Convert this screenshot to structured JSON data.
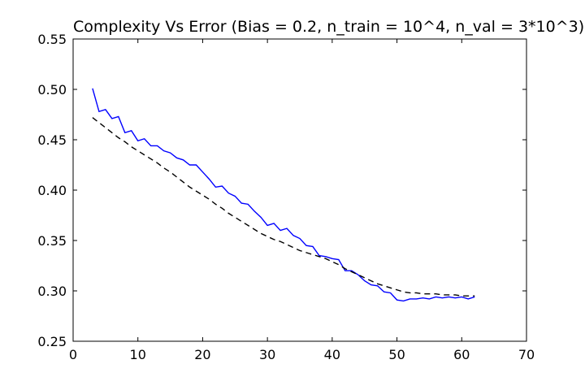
{
  "chart_data": {
    "type": "line",
    "title": "Complexity Vs Error (Bias = 0.2, n_train = 10^4, n_val = 3*10^3)",
    "xlabel": "",
    "ylabel": "",
    "xlim": [
      0,
      70
    ],
    "ylim": [
      0.25,
      0.55
    ],
    "xticks": [
      0,
      10,
      20,
      30,
      40,
      50,
      60,
      70
    ],
    "xtick_labels": [
      "0",
      "10",
      "20",
      "30",
      "40",
      "50",
      "60",
      "70"
    ],
    "yticks": [
      0.25,
      0.3,
      0.35,
      0.4,
      0.45,
      0.5,
      0.55
    ],
    "ytick_labels": [
      "0.25",
      "0.30",
      "0.35",
      "0.40",
      "0.45",
      "0.50",
      "0.55"
    ],
    "grid": false,
    "x": [
      3,
      4,
      5,
      6,
      7,
      8,
      9,
      10,
      11,
      12,
      13,
      14,
      15,
      16,
      17,
      18,
      19,
      20,
      21,
      22,
      23,
      24,
      25,
      26,
      27,
      28,
      29,
      30,
      31,
      32,
      33,
      34,
      35,
      36,
      37,
      38,
      39,
      40,
      41,
      42,
      43,
      44,
      45,
      46,
      47,
      48,
      49,
      50,
      51,
      52,
      53,
      54,
      55,
      56,
      57,
      58,
      59,
      60,
      61,
      62
    ],
    "series": [
      {
        "color": "#0000ff",
        "style": "solid",
        "values": [
          0.501,
          0.478,
          0.48,
          0.471,
          0.473,
          0.457,
          0.459,
          0.449,
          0.451,
          0.444,
          0.444,
          0.439,
          0.437,
          0.432,
          0.43,
          0.425,
          0.425,
          0.418,
          0.411,
          0.403,
          0.404,
          0.397,
          0.394,
          0.387,
          0.386,
          0.379,
          0.373,
          0.365,
          0.367,
          0.36,
          0.362,
          0.355,
          0.352,
          0.345,
          0.344,
          0.335,
          0.334,
          0.332,
          0.331,
          0.32,
          0.32,
          0.316,
          0.31,
          0.306,
          0.305,
          0.299,
          0.298,
          0.291,
          0.29,
          0.292,
          0.292,
          0.293,
          0.292,
          0.294,
          0.293,
          0.294,
          0.293,
          0.294,
          0.292,
          0.294
        ]
      },
      {
        "color": "#000000",
        "style": "dashed",
        "values": [
          0.472,
          0.467,
          0.462,
          0.457,
          0.452,
          0.448,
          0.443,
          0.439,
          0.435,
          0.431,
          0.427,
          0.422,
          0.418,
          0.413,
          0.408,
          0.403,
          0.399,
          0.395,
          0.391,
          0.386,
          0.382,
          0.377,
          0.373,
          0.369,
          0.365,
          0.361,
          0.357,
          0.354,
          0.351,
          0.349,
          0.346,
          0.343,
          0.34,
          0.338,
          0.336,
          0.334,
          0.332,
          0.329,
          0.326,
          0.322,
          0.319,
          0.316,
          0.313,
          0.31,
          0.307,
          0.305,
          0.303,
          0.301,
          0.299,
          0.298,
          0.298,
          0.297,
          0.297,
          0.297,
          0.296,
          0.296,
          0.296,
          0.295,
          0.295,
          0.295
        ]
      }
    ]
  }
}
